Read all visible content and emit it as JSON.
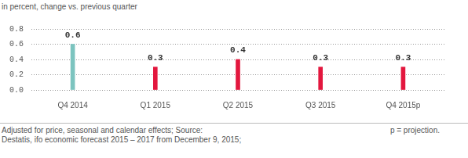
{
  "chart_data": {
    "type": "bar",
    "subtitle": "in percent, change vs. previous quarter",
    "categories": [
      "Q4 2014",
      "Q1 2015",
      "Q2 2015",
      "Q3 2015",
      "Q4 2015p"
    ],
    "values": [
      0.6,
      0.3,
      0.4,
      0.3,
      0.3
    ],
    "colors": [
      "#7cc4bf",
      "#e3173e",
      "#e3173e",
      "#e3173e",
      "#e3173e"
    ],
    "ylim": [
      0,
      0.8
    ],
    "yticks": [
      {
        "value": 0,
        "label": "0.0"
      },
      0.2,
      0.4,
      0.6,
      0.8
    ],
    "grid": true,
    "data_labels": true,
    "footnote": [
      "Adjusted for price, seasonal and calendar effects; Source:",
      "Destatis, ifo economic forecast 2015 – 2017 from December 9, 2015;"
    ],
    "annotation": "p = projection."
  }
}
